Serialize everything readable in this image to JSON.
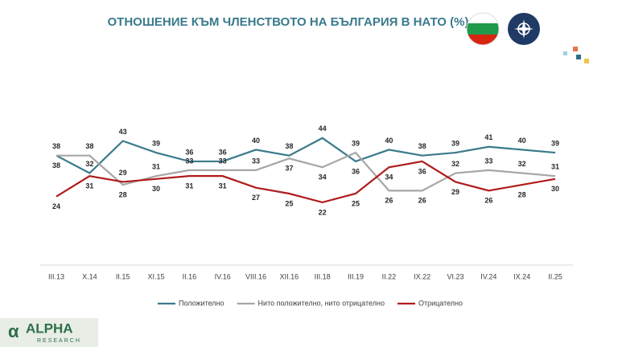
{
  "chart_data": {
    "type": "line",
    "title": "ОТНОШЕНИЕ КЪМ ЧЛЕНСТВОТО НА БЪЛГАРИЯ В НАТО (%)",
    "categories": [
      "III.13",
      "X.14",
      "II.15",
      "XI.15",
      "II.16",
      "IV.16",
      "VIII.16",
      "XII.16",
      "III.18",
      "III.19",
      "II.22",
      "IX.22",
      "VI.23",
      "IV.24",
      "IX.24",
      "II.25"
    ],
    "series": [
      {
        "name": "Положително",
        "color": "#3a7a8c",
        "values": [
          38,
          32,
          43,
          39,
          36,
          36,
          40,
          38,
          44,
          36,
          40,
          38,
          39,
          41,
          40,
          39
        ]
      },
      {
        "name": "Нито положително, нито отрицателно",
        "color": "#a6a6a6",
        "values": [
          38,
          38,
          28,
          31,
          33,
          33,
          33,
          37,
          34,
          39,
          26,
          26,
          32,
          33,
          32,
          31
        ]
      },
      {
        "name": "Отрицателно",
        "color": "#b01c1c",
        "values": [
          24,
          31,
          29,
          30,
          31,
          31,
          27,
          25,
          22,
          25,
          34,
          36,
          29,
          26,
          28,
          30
        ]
      }
    ],
    "legend": "bottom"
  },
  "logo": {
    "name": "ALPHA",
    "sub": "RESEARCH"
  }
}
